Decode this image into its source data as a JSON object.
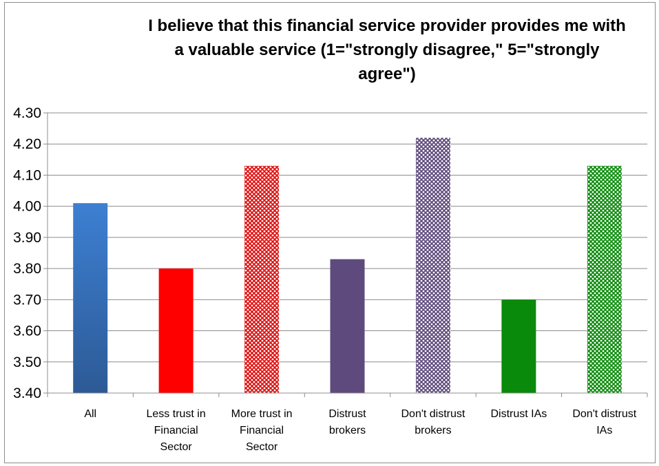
{
  "chart_data": {
    "type": "bar",
    "title": "I believe that this financial service provider provides me with\na valuable service  (1=\"strongly disagree,\" 5=\"strongly\nagree\")",
    "xlabel": "",
    "ylabel": "",
    "ylim": [
      3.4,
      4.3
    ],
    "yticks": [
      "3.40",
      "3.50",
      "3.60",
      "3.70",
      "3.80",
      "3.90",
      "4.00",
      "4.10",
      "4.20",
      "4.30"
    ],
    "grid": true,
    "legend": "none",
    "categories": [
      [
        "All"
      ],
      [
        "Less trust in",
        "Financial",
        "Sector"
      ],
      [
        "More trust in",
        "Financial",
        "Sector"
      ],
      [
        "Distrust",
        "brokers"
      ],
      [
        "Don't distrust",
        "brokers"
      ],
      [
        "Distrust IAs"
      ],
      [
        "Don't distrust",
        "IAs"
      ]
    ],
    "values": [
      4.01,
      3.8,
      4.13,
      3.83,
      4.22,
      3.7,
      4.13
    ],
    "colors": [
      "#3a74c0",
      "#ff0000",
      "#d93030",
      "#5e4a7c",
      "#6f5a8c",
      "#0a8a0a",
      "#1a9a2a"
    ],
    "patterns": [
      "gradient-blue",
      "solid",
      "dots-red",
      "solid",
      "dots-purple",
      "solid",
      "dots-green"
    ]
  }
}
